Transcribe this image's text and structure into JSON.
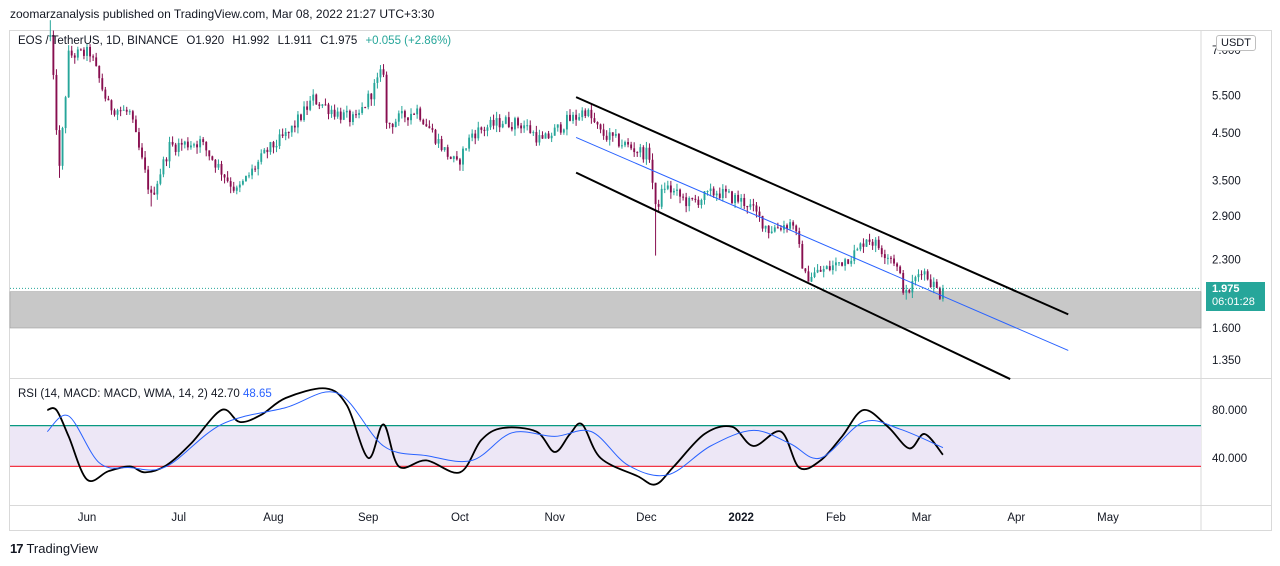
{
  "header": {
    "publisher_line": "zoomarzanalysis published on TradingView.com, Mar 08, 2022 21:27 UTC+3:30"
  },
  "legend": {
    "symbol": "EOS / TetherUS, 1D, BINANCE",
    "open": "O1.920",
    "high": "H1.992",
    "low": "L1.911",
    "close": "C1.975",
    "change": "+0.055 (+2.86%)"
  },
  "currency": "USDT",
  "last_price": {
    "value": "1.975",
    "countdown": "06:01:28"
  },
  "rsi_legend": {
    "label": "RSI (14, MACD: MACD, WMA, 14, 2)",
    "value1": "42.70",
    "value2": "48.65"
  },
  "footer": {
    "logo": "17",
    "brand": "TradingView"
  },
  "colors": {
    "up": "#26a69a",
    "down": "#880e4f",
    "channel": "#000000",
    "midline": "#2962ff",
    "zone": "#c8c8c8",
    "rsi_line": "#000000",
    "rsi_signal": "#2962ff",
    "rsi_upper": "#089981",
    "rsi_lower": "#f23645",
    "rsi_band": "#ede7f6"
  },
  "chart_data": [
    {
      "type": "candlestick",
      "title": "EOS / TetherUS, 1D, BINANCE",
      "y_scale": "log",
      "y_tick_labels": [
        "7.000",
        "5.500",
        "4.500",
        "3.500",
        "2.900",
        "2.300",
        "1.600",
        "1.350"
      ],
      "x_tick_labels": [
        "Jun",
        "Jul",
        "Aug",
        "Sep",
        "Oct",
        "Nov",
        "Dec",
        "2022",
        "Feb",
        "Mar",
        "Apr",
        "May"
      ],
      "ylim": [
        1.22,
        8.0
      ],
      "anchors": [
        {
          "date": "2021-05-20",
          "price": 7.5
        },
        {
          "date": "2021-05-23",
          "price": 3.7
        },
        {
          "date": "2021-05-26",
          "price": 6.8
        },
        {
          "date": "2021-06-02",
          "price": 6.9
        },
        {
          "date": "2021-06-08",
          "price": 5.2
        },
        {
          "date": "2021-06-15",
          "price": 5.0
        },
        {
          "date": "2021-06-22",
          "price": 3.2
        },
        {
          "date": "2021-06-28",
          "price": 4.2
        },
        {
          "date": "2021-07-08",
          "price": 4.3
        },
        {
          "date": "2021-07-20",
          "price": 3.3
        },
        {
          "date": "2021-07-30",
          "price": 4.1
        },
        {
          "date": "2021-08-06",
          "price": 4.5
        },
        {
          "date": "2021-08-14",
          "price": 5.4
        },
        {
          "date": "2021-08-22",
          "price": 5.0
        },
        {
          "date": "2021-08-28",
          "price": 4.8
        },
        {
          "date": "2021-09-06",
          "price": 6.3
        },
        {
          "date": "2021-09-07",
          "price": 4.7
        },
        {
          "date": "2021-09-17",
          "price": 5.1
        },
        {
          "date": "2021-09-26",
          "price": 4.1
        },
        {
          "date": "2021-09-30",
          "price": 3.8
        },
        {
          "date": "2021-10-05",
          "price": 4.5
        },
        {
          "date": "2021-10-15",
          "price": 4.8
        },
        {
          "date": "2021-10-22",
          "price": 4.7
        },
        {
          "date": "2021-10-28",
          "price": 4.3
        },
        {
          "date": "2021-11-05",
          "price": 4.8
        },
        {
          "date": "2021-11-08",
          "price": 4.9
        },
        {
          "date": "2021-11-11",
          "price": 5.1
        },
        {
          "date": "2021-11-16",
          "price": 4.5
        },
        {
          "date": "2021-11-25",
          "price": 4.2
        },
        {
          "date": "2021-12-02",
          "price": 4.0
        },
        {
          "date": "2021-12-04",
          "price": 3.0
        },
        {
          "date": "2021-12-07",
          "price": 3.4
        },
        {
          "date": "2021-12-15",
          "price": 3.1
        },
        {
          "date": "2021-12-24",
          "price": 3.3
        },
        {
          "date": "2022-01-03",
          "price": 3.1
        },
        {
          "date": "2022-01-10",
          "price": 2.7
        },
        {
          "date": "2022-01-18",
          "price": 2.8
        },
        {
          "date": "2022-01-22",
          "price": 2.1
        },
        {
          "date": "2022-01-30",
          "price": 2.2
        },
        {
          "date": "2022-02-08",
          "price": 2.4
        },
        {
          "date": "2022-02-11",
          "price": 2.6
        },
        {
          "date": "2022-02-20",
          "price": 2.3
        },
        {
          "date": "2022-02-24",
          "price": 1.9
        },
        {
          "date": "2022-03-01",
          "price": 2.2
        },
        {
          "date": "2022-03-07",
          "price": 1.92
        },
        {
          "date": "2022-03-08",
          "price": 1.975
        }
      ],
      "channel_upper": [
        {
          "date": "2021-11-08",
          "price": 5.45
        },
        {
          "date": "2022-04-18",
          "price": 1.72
        }
      ],
      "channel_lower": [
        {
          "date": "2021-11-08",
          "price": 3.65
        },
        {
          "date": "2022-03-30",
          "price": 1.22
        }
      ],
      "channel_mid": [
        {
          "date": "2021-11-08",
          "price": 4.4
        },
        {
          "date": "2022-04-18",
          "price": 1.42
        }
      ],
      "support_zone": [
        1.6,
        1.94
      ],
      "last_price": 1.975
    },
    {
      "type": "line",
      "title": "RSI (14, MACD: MACD, WMA, 14, 2)",
      "y_tick_labels": [
        "80.000",
        "40.000"
      ],
      "ylim": [
        20,
        100
      ],
      "levels": {
        "upper": 67,
        "lower": 33
      },
      "series": [
        {
          "name": "RSI",
          "points": [
            {
              "date": "2021-05-19",
              "value": 80
            },
            {
              "date": "2021-05-22",
              "value": 80
            },
            {
              "date": "2021-05-26",
              "value": 58
            },
            {
              "date": "2021-06-01",
              "value": 22
            },
            {
              "date": "2021-06-08",
              "value": 29
            },
            {
              "date": "2021-06-15",
              "value": 33
            },
            {
              "date": "2021-06-20",
              "value": 28
            },
            {
              "date": "2021-06-27",
              "value": 34
            },
            {
              "date": "2021-07-05",
              "value": 52
            },
            {
              "date": "2021-07-15",
              "value": 80
            },
            {
              "date": "2021-07-21",
              "value": 70
            },
            {
              "date": "2021-07-28",
              "value": 76
            },
            {
              "date": "2021-08-05",
              "value": 90
            },
            {
              "date": "2021-08-18",
              "value": 98
            },
            {
              "date": "2021-08-25",
              "value": 84
            },
            {
              "date": "2021-09-01",
              "value": 40
            },
            {
              "date": "2021-09-06",
              "value": 68
            },
            {
              "date": "2021-09-11",
              "value": 33
            },
            {
              "date": "2021-09-20",
              "value": 38
            },
            {
              "date": "2021-10-01",
              "value": 28
            },
            {
              "date": "2021-10-08",
              "value": 55
            },
            {
              "date": "2021-10-15",
              "value": 65
            },
            {
              "date": "2021-10-26",
              "value": 62
            },
            {
              "date": "2021-11-01",
              "value": 45
            },
            {
              "date": "2021-11-06",
              "value": 60
            },
            {
              "date": "2021-11-10",
              "value": 68
            },
            {
              "date": "2021-11-16",
              "value": 40
            },
            {
              "date": "2021-11-28",
              "value": 25
            },
            {
              "date": "2021-12-04",
              "value": 18
            },
            {
              "date": "2021-12-10",
              "value": 33
            },
            {
              "date": "2021-12-20",
              "value": 60
            },
            {
              "date": "2021-12-29",
              "value": 66
            },
            {
              "date": "2022-01-05",
              "value": 50
            },
            {
              "date": "2022-01-14",
              "value": 62
            },
            {
              "date": "2022-01-20",
              "value": 32
            },
            {
              "date": "2022-01-27",
              "value": 38
            },
            {
              "date": "2022-02-03",
              "value": 58
            },
            {
              "date": "2022-02-10",
              "value": 80
            },
            {
              "date": "2022-02-18",
              "value": 66
            },
            {
              "date": "2022-02-25",
              "value": 48
            },
            {
              "date": "2022-03-02",
              "value": 60
            },
            {
              "date": "2022-03-08",
              "value": 42.7
            }
          ]
        },
        {
          "name": "MACD",
          "points": [
            {
              "date": "2021-05-19",
              "value": 62
            },
            {
              "date": "2021-05-26",
              "value": 75
            },
            {
              "date": "2021-06-05",
              "value": 36
            },
            {
              "date": "2021-06-15",
              "value": 32
            },
            {
              "date": "2021-06-27",
              "value": 33
            },
            {
              "date": "2021-07-15",
              "value": 68
            },
            {
              "date": "2021-08-05",
              "value": 82
            },
            {
              "date": "2021-08-22",
              "value": 94
            },
            {
              "date": "2021-09-06",
              "value": 50
            },
            {
              "date": "2021-09-20",
              "value": 42
            },
            {
              "date": "2021-10-05",
              "value": 38
            },
            {
              "date": "2021-10-18",
              "value": 61
            },
            {
              "date": "2021-11-01",
              "value": 58
            },
            {
              "date": "2021-11-13",
              "value": 62
            },
            {
              "date": "2021-11-25",
              "value": 34
            },
            {
              "date": "2021-12-08",
              "value": 26
            },
            {
              "date": "2021-12-22",
              "value": 50
            },
            {
              "date": "2022-01-05",
              "value": 63
            },
            {
              "date": "2022-01-17",
              "value": 52
            },
            {
              "date": "2022-01-27",
              "value": 40
            },
            {
              "date": "2022-02-10",
              "value": 70
            },
            {
              "date": "2022-02-22",
              "value": 64
            },
            {
              "date": "2022-03-08",
              "value": 48.65
            }
          ]
        }
      ]
    }
  ]
}
